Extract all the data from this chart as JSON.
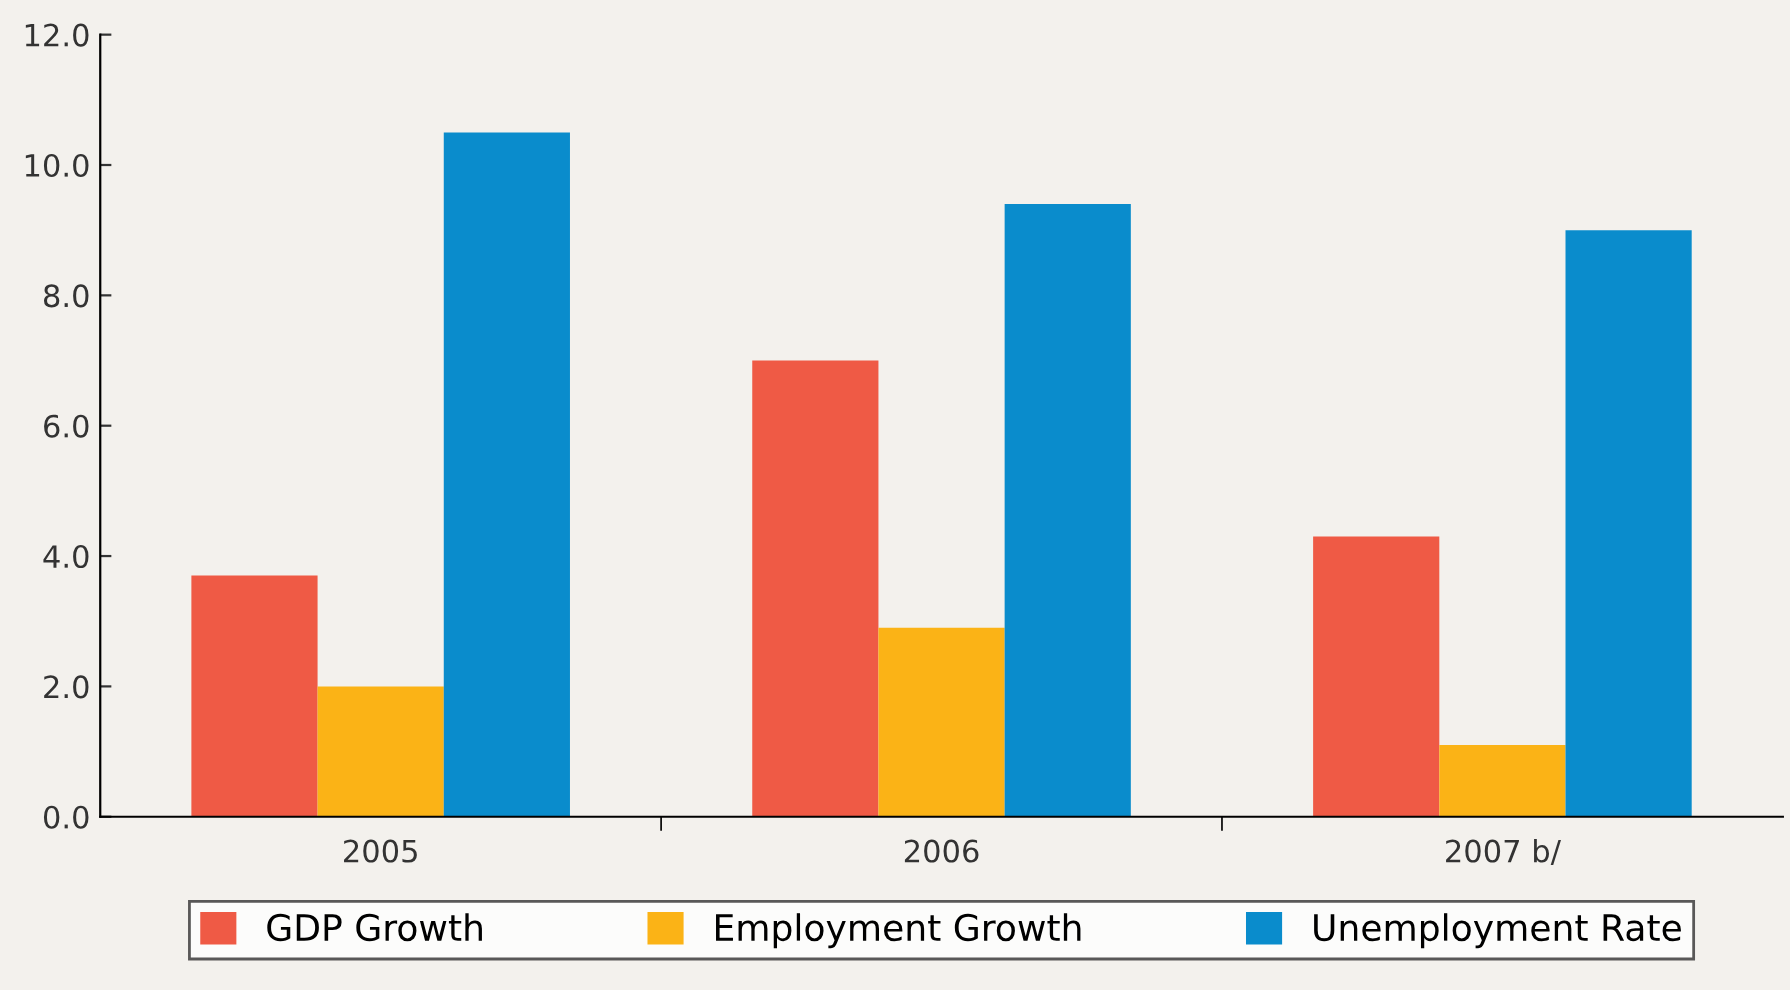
{
  "chart_data": {
    "type": "bar",
    "categories": [
      "2005",
      "2006",
      "2007 b/"
    ],
    "series": [
      {
        "name": "GDP Growth",
        "color": "#ef5a45",
        "values": [
          3.7,
          7.0,
          4.3
        ]
      },
      {
        "name": "Employment Growth",
        "color": "#fbb316",
        "values": [
          2.0,
          2.9,
          1.1
        ]
      },
      {
        "name": "Unemployment Rate",
        "color": "#0a8ccc",
        "values": [
          10.5,
          9.4,
          9.0
        ]
      }
    ],
    "ylim": [
      0,
      12
    ],
    "yticks": [
      {
        "value": 0,
        "label": "0.0"
      },
      {
        "value": 2,
        "label": "2.0"
      },
      {
        "value": 4,
        "label": "4.0"
      },
      {
        "value": 6,
        "label": "6.0"
      },
      {
        "value": 8,
        "label": "8.0"
      },
      {
        "value": 10,
        "label": "10.0"
      },
      {
        "value": 12,
        "label": "12.0"
      }
    ],
    "grid": false,
    "legend": "bottom"
  }
}
